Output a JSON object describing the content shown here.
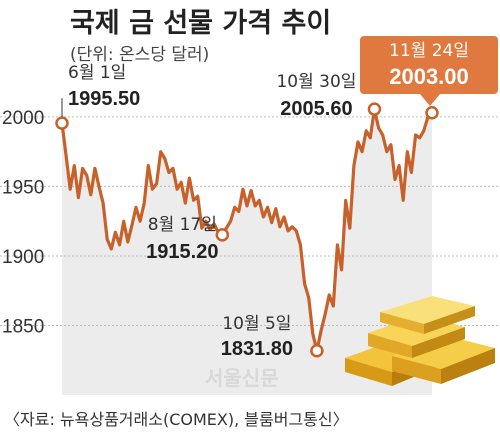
{
  "chart_data": {
    "type": "line",
    "title": "국제 금 선물 가격 추이",
    "subtitle": "(단위: 온스당 달러)",
    "source": "〈자료: 뉴욕상품거래소(COMEX), 블룸버그통신〉",
    "watermark": "서울신문",
    "ylim": [
      1800,
      2010
    ],
    "yticks": [
      1850,
      1900,
      1950,
      2000
    ],
    "yticks_text": [
      "1850",
      "1900",
      "1950",
      "2000"
    ],
    "line_color": "#c8602a",
    "area_color": "#ececec",
    "callout_color": "#e0793f",
    "values": [
      1995.5,
      1972,
      1948,
      1965,
      1942,
      1963,
      1958,
      1944,
      1963,
      1950,
      1938,
      1912,
      1905,
      1917,
      1908,
      1925,
      1910,
      1922,
      1935,
      1925,
      1938,
      1965,
      1948,
      1952,
      1975,
      1970,
      1960,
      1963,
      1948,
      1953,
      1938,
      1956,
      1940,
      1943,
      1920,
      1925,
      1919,
      1923,
      1917,
      1915.2,
      1920,
      1925,
      1935,
      1932,
      1948,
      1936,
      1947,
      1936,
      1940,
      1928,
      1935,
      1924,
      1934,
      1921,
      1928,
      1918,
      1921,
      1918,
      1908,
      1880,
      1870,
      1844,
      1831.8,
      1846,
      1858,
      1872,
      1864,
      1908,
      1890,
      1940,
      1920,
      1965,
      1982,
      1975,
      1990,
      1985,
      2005.6,
      1992,
      1987,
      1975,
      1980,
      1955,
      1965,
      1940,
      1975,
      1960,
      1987,
      1985,
      1990,
      2000,
      2003
    ],
    "annotations": [
      {
        "index": 0,
        "date": "6월 1일",
        "value": "1995.50"
      },
      {
        "index": 39,
        "date": "8월 17일",
        "value": "1915.20"
      },
      {
        "index": 62,
        "date": "10월 5일",
        "value": "1831.80"
      },
      {
        "index": 76,
        "date": "10월 30일",
        "value": "2005.60"
      }
    ],
    "callout": {
      "index": 90,
      "date": "11월 24일",
      "value": "2003.00"
    }
  }
}
